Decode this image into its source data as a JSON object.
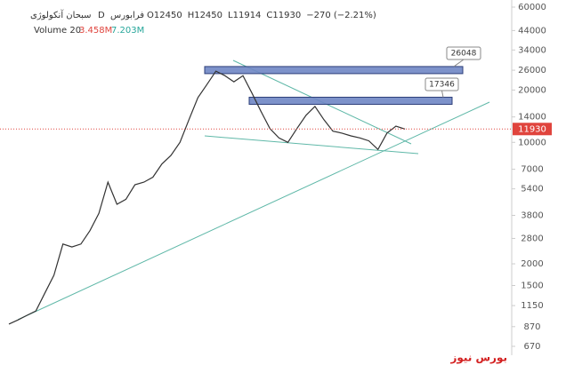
{
  "chart_data": {
    "type": "line",
    "title": "سبحان آنکولوژی",
    "interval": "D",
    "exchange": "فرابورس",
    "ohlc": [
      "O12450",
      "H12450",
      "L11914",
      "C11930"
    ],
    "change": "−270 (−2.21%)",
    "volume_label": "Volume 20",
    "volume_values": [
      "3.458M",
      "7.203M"
    ],
    "log_scale": true,
    "color": "#333333",
    "ylim": [
      670,
      60000
    ],
    "yticks": [
      60000,
      44000,
      34000,
      26000,
      20000,
      14000,
      10000,
      7000,
      5400,
      3800,
      2800,
      2000,
      1500,
      1150,
      870,
      670
    ],
    "values": [
      900,
      950,
      1010,
      1070,
      1360,
      1720,
      2600,
      2500,
      2600,
      3100,
      3900,
      5900,
      4400,
      4700,
      5700,
      5900,
      6300,
      7500,
      8400,
      10000,
      13500,
      18100,
      21500,
      25700,
      24200,
      22300,
      24200,
      19200,
      15100,
      12000,
      10600,
      10000,
      12000,
      14300,
      16100,
      13500,
      11600,
      11300,
      10900,
      10600,
      10200,
      9100,
      11300,
      12400,
      11930
    ],
    "zones": [
      {
        "value": 26048
      },
      {
        "value": 17346
      }
    ],
    "watermark": "بورس نیوز"
  }
}
